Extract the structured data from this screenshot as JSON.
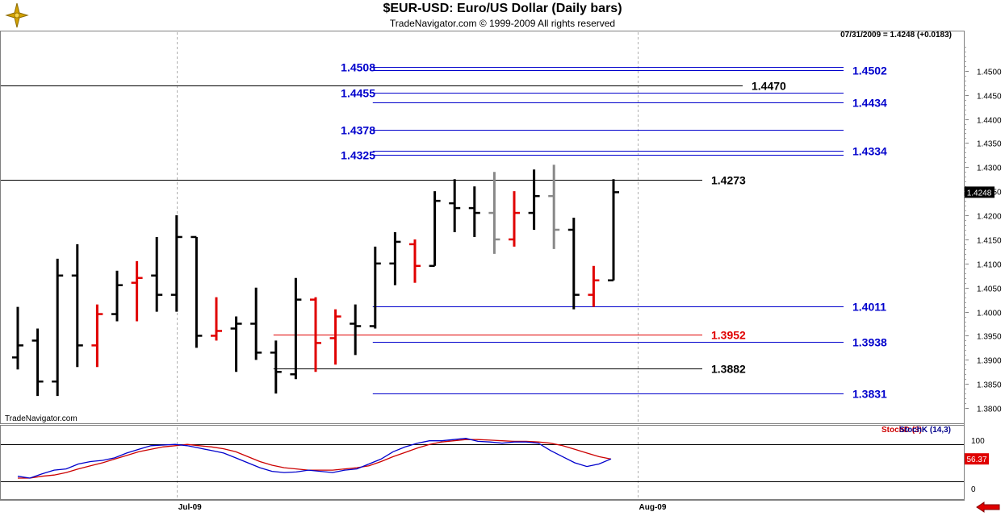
{
  "header": {
    "title": "$EUR-USD:  Euro/US Dollar  (Daily bars)",
    "subtitle": "TradeNavigator.com © 1999-2009 All rights reserved",
    "last_info": "07/31/2009 = 1.4248 (+0.0183)"
  },
  "credit": "TradeNavigator.com",
  "colors": {
    "bar_black": "#000000",
    "bar_red": "#e00000",
    "bar_gray": "#888888",
    "level_blue": "#0000cc",
    "level_red": "#e00000",
    "stoch_d": "#cc0000",
    "stoch_k": "#0000cc"
  },
  "chart_data": [
    {
      "type": "ohlc",
      "title": "$EUR-USD:  Euro/US Dollar  (Daily bars)",
      "ylim": [
        1.377,
        1.458
      ],
      "y_ticks": [
        "1.4500",
        "1.4450",
        "1.4400",
        "1.4350",
        "1.4300",
        "1.4250",
        "1.4200",
        "1.4150",
        "1.4100",
        "1.4050",
        "1.4000",
        "1.3950",
        "1.3900",
        "1.3850",
        "1.3800"
      ],
      "x_ticks": [
        {
          "label": "Jul-09",
          "bar": 8
        },
        {
          "label": "Aug-09",
          "bar": 31.2
        }
      ],
      "last_price_label": "1.4248",
      "bars": [
        {
          "o": 1.3905,
          "h": 1.401,
          "l": 1.388,
          "c": 1.393,
          "color": "black"
        },
        {
          "o": 1.394,
          "h": 1.3965,
          "l": 1.3825,
          "c": 1.3855,
          "color": "black"
        },
        {
          "o": 1.3855,
          "h": 1.411,
          "l": 1.3825,
          "c": 1.4075,
          "color": "black"
        },
        {
          "o": 1.4075,
          "h": 1.414,
          "l": 1.3885,
          "c": 1.393,
          "color": "black"
        },
        {
          "o": 1.393,
          "h": 1.4015,
          "l": 1.3885,
          "c": 1.3995,
          "color": "red"
        },
        {
          "o": 1.3995,
          "h": 1.4085,
          "l": 1.398,
          "c": 1.4055,
          "color": "black"
        },
        {
          "o": 1.406,
          "h": 1.4105,
          "l": 1.398,
          "c": 1.407,
          "color": "red"
        },
        {
          "o": 1.4075,
          "h": 1.4155,
          "l": 1.4,
          "c": 1.4035,
          "color": "black"
        },
        {
          "o": 1.4035,
          "h": 1.42,
          "l": 1.4,
          "c": 1.4155,
          "color": "black"
        },
        {
          "o": 1.4155,
          "h": 1.4155,
          "l": 1.3925,
          "c": 1.395,
          "color": "black"
        },
        {
          "o": 1.395,
          "h": 1.403,
          "l": 1.394,
          "c": 1.396,
          "color": "red"
        },
        {
          "o": 1.3965,
          "h": 1.399,
          "l": 1.3875,
          "c": 1.3975,
          "color": "black"
        },
        {
          "o": 1.3975,
          "h": 1.405,
          "l": 1.39,
          "c": 1.3915,
          "color": "black"
        },
        {
          "o": 1.3915,
          "h": 1.394,
          "l": 1.383,
          "c": 1.3875,
          "color": "black"
        },
        {
          "o": 1.387,
          "h": 1.407,
          "l": 1.386,
          "c": 1.4025,
          "color": "black"
        },
        {
          "o": 1.4025,
          "h": 1.403,
          "l": 1.3875,
          "c": 1.3935,
          "color": "red"
        },
        {
          "o": 1.3945,
          "h": 1.4005,
          "l": 1.389,
          "c": 1.399,
          "color": "red"
        },
        {
          "o": 1.3975,
          "h": 1.4015,
          "l": 1.391,
          "c": 1.397,
          "color": "black"
        },
        {
          "o": 1.397,
          "h": 1.4135,
          "l": 1.3965,
          "c": 1.41,
          "color": "black"
        },
        {
          "o": 1.41,
          "h": 1.4165,
          "l": 1.4055,
          "c": 1.4145,
          "color": "black"
        },
        {
          "o": 1.414,
          "h": 1.415,
          "l": 1.406,
          "c": 1.4095,
          "color": "red"
        },
        {
          "o": 1.4095,
          "h": 1.425,
          "l": 1.4095,
          "c": 1.423,
          "color": "black"
        },
        {
          "o": 1.4225,
          "h": 1.4275,
          "l": 1.4165,
          "c": 1.4215,
          "color": "black"
        },
        {
          "o": 1.4215,
          "h": 1.426,
          "l": 1.4155,
          "c": 1.4205,
          "color": "black"
        },
        {
          "o": 1.4205,
          "h": 1.429,
          "l": 1.412,
          "c": 1.415,
          "color": "gray"
        },
        {
          "o": 1.415,
          "h": 1.425,
          "l": 1.4135,
          "c": 1.4205,
          "color": "red"
        },
        {
          "o": 1.4205,
          "h": 1.4295,
          "l": 1.417,
          "c": 1.424,
          "color": "black"
        },
        {
          "o": 1.424,
          "h": 1.4305,
          "l": 1.413,
          "c": 1.417,
          "color": "gray"
        },
        {
          "o": 1.417,
          "h": 1.4195,
          "l": 1.4005,
          "c": 1.4035,
          "color": "black"
        },
        {
          "o": 1.4035,
          "h": 1.4095,
          "l": 1.401,
          "c": 1.4065,
          "color": "red"
        },
        {
          "o": 1.4065,
          "h": 1.4275,
          "l": 1.4065,
          "c": 1.4248,
          "color": "black"
        }
      ],
      "levels": [
        {
          "label": "1.4508",
          "value": 1.4508,
          "color": "blue",
          "side": "left",
          "from_bar": 18
        },
        {
          "label": "1.4502",
          "value": 1.4502,
          "color": "blue",
          "side": "right",
          "from_bar": 18
        },
        {
          "label": "1.4470",
          "value": 1.447,
          "color": "black",
          "side": "mid",
          "from_bar": -1
        },
        {
          "label": "1.4455",
          "value": 1.4455,
          "color": "blue",
          "side": "left",
          "from_bar": 18
        },
        {
          "label": "1.4434",
          "value": 1.4434,
          "color": "blue",
          "side": "right",
          "from_bar": 18
        },
        {
          "label": "1.4378",
          "value": 1.4378,
          "color": "blue",
          "side": "left",
          "from_bar": 18
        },
        {
          "label": "1.4334",
          "value": 1.4334,
          "color": "blue",
          "side": "right",
          "from_bar": 18
        },
        {
          "label": "1.4325",
          "value": 1.4325,
          "color": "blue",
          "side": "left",
          "from_bar": 18
        },
        {
          "label": "1.4273",
          "value": 1.4273,
          "color": "black",
          "side": "mid",
          "from_bar": -1
        },
        {
          "label": "1.4011",
          "value": 1.4011,
          "color": "blue",
          "side": "right",
          "from_bar": 18
        },
        {
          "label": "1.3952",
          "value": 1.3952,
          "color": "red",
          "side": "mid",
          "from_bar": 13
        },
        {
          "label": "1.3938",
          "value": 1.3938,
          "color": "blue",
          "side": "right",
          "from_bar": 18
        },
        {
          "label": "1.3882",
          "value": 1.3882,
          "color": "black",
          "side": "mid",
          "from_bar": 13
        },
        {
          "label": "1.3831",
          "value": 1.3831,
          "color": "blue",
          "side": "right",
          "from_bar": 18
        }
      ]
    },
    {
      "type": "line",
      "title": "",
      "ylim": [
        -8,
        108
      ],
      "y_ticks": [
        "100",
        "0"
      ],
      "ref_lines": [
        80,
        20
      ],
      "last_value_label": "56.37",
      "series": [
        {
          "name": "StochD (3)",
          "color": "red",
          "values": [
            25,
            25,
            28,
            30,
            34,
            40,
            45,
            50,
            56,
            62,
            68,
            72,
            76,
            78,
            80,
            78,
            76,
            73,
            68,
            60,
            52,
            46,
            42,
            40,
            38,
            38,
            38,
            40,
            42,
            45,
            52,
            60,
            67,
            74,
            80,
            84,
            86,
            88,
            88,
            87,
            86,
            85,
            85,
            84,
            82,
            78,
            72,
            66,
            60,
            56
          ]
        },
        {
          "name": "StochK (14,3)",
          "color": "blue",
          "values": [
            28,
            25,
            32,
            38,
            40,
            48,
            52,
            54,
            58,
            66,
            72,
            78,
            79,
            80,
            78,
            74,
            70,
            66,
            58,
            50,
            42,
            36,
            34,
            35,
            38,
            36,
            34,
            38,
            40,
            48,
            56,
            68,
            76,
            82,
            86,
            86,
            88,
            90,
            85,
            84,
            82,
            84,
            84,
            82,
            70,
            60,
            50,
            44,
            48,
            56.37
          ]
        }
      ]
    }
  ]
}
